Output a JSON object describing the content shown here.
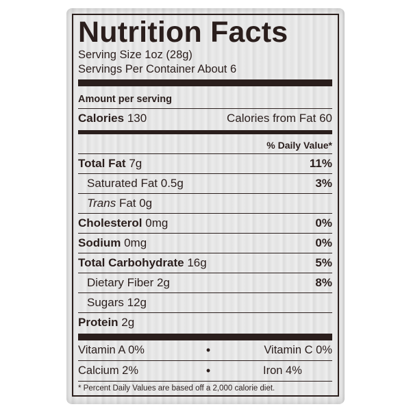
{
  "title": "Nutrition Facts",
  "serving_size": "Serving Size 1oz (28g)",
  "servings_per_container": "Servings Per Container About 6",
  "amount_per_serving": "Amount per serving",
  "calories": {
    "label": "Calories",
    "value": "130",
    "from_fat": "Calories from Fat 60"
  },
  "daily_value_header": "% Daily Value*",
  "nutrients": [
    {
      "label": "Total Fat",
      "amount": "7g",
      "dv": "11%"
    },
    {
      "label": "Saturated Fat",
      "amount": "0.5g",
      "dv": "3%"
    },
    {
      "label": "Trans",
      "amount": "Fat 0g",
      "dv": ""
    },
    {
      "label": "Cholesterol",
      "amount": "0mg",
      "dv": "0%"
    },
    {
      "label": "Sodium",
      "amount": "0mg",
      "dv": "0%"
    },
    {
      "label": "Total Carbohydrate",
      "amount": "16g",
      "dv": "5%"
    },
    {
      "label": "Dietary Fiber",
      "amount": "2g",
      "dv": "8%"
    },
    {
      "label": "Sugars",
      "amount": "12g",
      "dv": ""
    },
    {
      "label": "Protein",
      "amount": "2g",
      "dv": ""
    }
  ],
  "vitamins": [
    {
      "left": "Vitamin A  0%",
      "sep": "•",
      "right": "Vitamin C  0%"
    },
    {
      "left": "Calcium  2%",
      "sep": "•",
      "right": "Iron  4%"
    }
  ],
  "footnote": "* Percent Daily Values are based off a 2,000 calorie diet."
}
